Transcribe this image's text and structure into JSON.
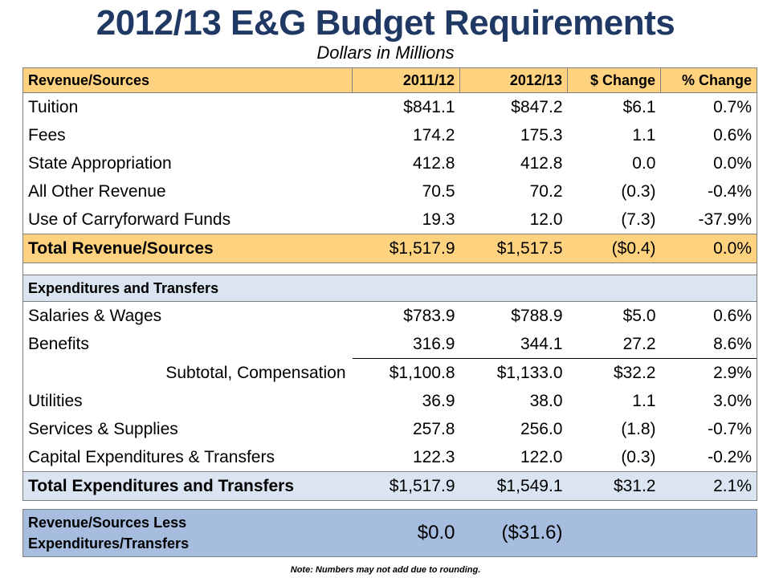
{
  "title": "2012/13 E&G Budget Requirements",
  "subtitle": "Dollars in Millions",
  "header": [
    "Revenue/Sources",
    "2011/12",
    "2012/13",
    "$ Change",
    "% Change"
  ],
  "revenue_rows": [
    {
      "label": "Tuition",
      "v1": "$841.1",
      "v2": "$847.2",
      "chg": "$6.1",
      "pct": "0.7%"
    },
    {
      "label": "Fees",
      "v1": "174.2",
      "v2": "175.3",
      "chg": "1.1",
      "pct": "0.6%"
    },
    {
      "label": "State Appropriation",
      "v1": "412.8",
      "v2": "412.8",
      "chg": "0.0",
      "pct": "0.0%"
    },
    {
      "label": "All Other Revenue",
      "v1": "70.5",
      "v2": "70.2",
      "chg": "(0.3)",
      "pct": "-0.4%"
    },
    {
      "label": "Use of Carryforward Funds",
      "v1": "19.3",
      "v2": "12.0",
      "chg": "(7.3)",
      "pct": "-37.9%"
    }
  ],
  "total_revenue": {
    "label": "Total Revenue/Sources",
    "v1": "$1,517.9",
    "v2": "$1,517.5",
    "chg": "($0.4)",
    "pct": "0.0%"
  },
  "expenditures_header": "Expenditures and Transfers",
  "exp_rows_a": [
    {
      "label": "Salaries & Wages",
      "v1": "$783.9",
      "v2": "$788.9",
      "chg": "$5.0",
      "pct": "0.6%"
    },
    {
      "label": "Benefits",
      "v1": "316.9",
      "v2": "344.1",
      "chg": "27.2",
      "pct": "8.6%"
    }
  ],
  "subtotal": {
    "label": "Subtotal, Compensation",
    "v1": "$1,100.8",
    "v2": "$1,133.0",
    "chg": "$32.2",
    "pct": "2.9%"
  },
  "exp_rows_b": [
    {
      "label": "Utilities",
      "v1": "36.9",
      "v2": "38.0",
      "chg": "1.1",
      "pct": "3.0%"
    },
    {
      "label": "Services & Supplies",
      "v1": "257.8",
      "v2": "256.0",
      "chg": "(1.8)",
      "pct": "-0.7%"
    },
    {
      "label": "Capital Expenditures & Transfers",
      "v1": "122.3",
      "v2": "122.0",
      "chg": "(0.3)",
      "pct": "-0.2%"
    }
  ],
  "total_expenditures": {
    "label": "Total Expenditures and Transfers",
    "v1": "$1,517.9",
    "v2": "$1,549.1",
    "chg": "$31.2",
    "pct": "2.1%"
  },
  "net": {
    "label": "Revenue/Sources Less Expenditures/Transfers",
    "v1": "$0.0",
    "v2": "($31.6)"
  },
  "note": "Note: Numbers may not add due to rounding.",
  "colors": {
    "title": "#1f3864",
    "revenue_band": "#ffd27f",
    "expense_band": "#dbe4f1",
    "net_band": "#a7bde0"
  }
}
